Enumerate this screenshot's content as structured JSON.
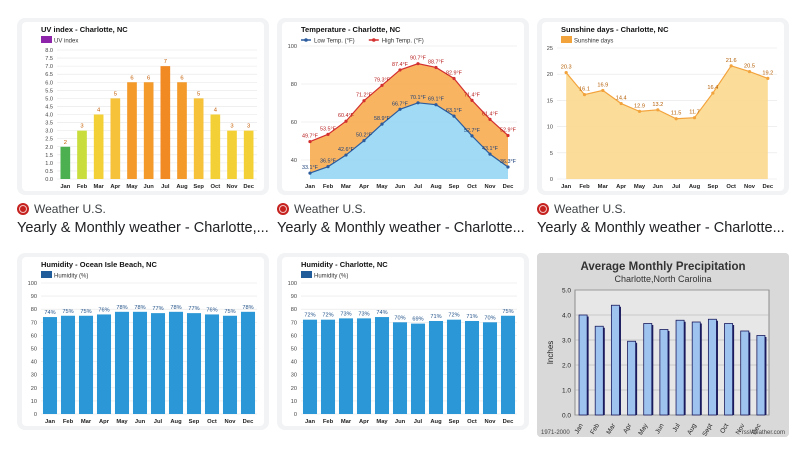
{
  "results": [
    {
      "source": "Weather U.S.",
      "title": "Yearly & Monthly weather - Charlotte,..."
    },
    {
      "source": "Weather U.S.",
      "title": "Yearly & Monthly weather - Charlotte..."
    },
    {
      "source": "Weather U.S.",
      "title": "Yearly & Monthly weather - Charlotte..."
    }
  ],
  "footnote": {
    "left": "1971-2000",
    "right": "rssWeather.com"
  },
  "chart_data": [
    {
      "type": "bar",
      "title": "UV index - Charlotte, NC",
      "categories": [
        "Jan",
        "Feb",
        "Mar",
        "Apr",
        "May",
        "Jun",
        "Jul",
        "Aug",
        "Sep",
        "Oct",
        "Nov",
        "Dec"
      ],
      "series": [
        {
          "name": "UV index",
          "values": [
            2,
            3,
            4,
            5,
            6,
            6,
            7,
            6,
            5,
            4,
            3,
            3
          ]
        }
      ],
      "ylim": [
        0,
        8.0
      ],
      "yticks": [
        "0.0",
        "0.5",
        "1.0",
        "1.5",
        "2.0",
        "2.5",
        "3.0",
        "3.5",
        "4.0",
        "4.5",
        "5.0",
        "5.5",
        "6.0",
        "6.5",
        "7.0",
        "7.5",
        "8.0"
      ],
      "colors": [
        "#4caf50",
        "#c9dd3c",
        "#f4d037",
        "#f5c23a",
        "#f39a2b",
        "#f39a2b",
        "#f28a24",
        "#f39a2b",
        "#f5c23a",
        "#f4d037",
        "#f4d037",
        "#f4d037"
      ],
      "legend_color": "#8e24aa"
    },
    {
      "type": "line",
      "title": "Temperature - Charlotte, NC",
      "categories": [
        "Jan",
        "Feb",
        "Mar",
        "Apr",
        "May",
        "Jun",
        "Jul",
        "Aug",
        "Sep",
        "Oct",
        "Nov",
        "Dec"
      ],
      "series": [
        {
          "name": "Low Temp. (°F)",
          "values": [
            33.1,
            36.5,
            42.6,
            50.2,
            58.9,
            66.7,
            70.1,
            69.1,
            63.1,
            52.7,
            43.1,
            36.3
          ],
          "labels": [
            "33.1°F",
            "36.5°F",
            "42.6°F",
            "50.2°F",
            "58.9°F",
            "66.7°F",
            "70.1°F",
            "69.1°F",
            "63.1°F",
            "52.7°F",
            "43.1°F",
            "36.3°F"
          ],
          "color": "#2c5c9e"
        },
        {
          "name": "High Temp. (°F)",
          "values": [
            49.7,
            53.5,
            60.4,
            71.2,
            79.3,
            87.4,
            90.7,
            88.7,
            82.9,
            71.4,
            61.4,
            52.9
          ],
          "labels": [
            "49.7°F",
            "53.5°F",
            "60.4°F",
            "71.2°F",
            "79.3°F",
            "87.4°F",
            "90.7°F",
            "88.7°F",
            "82.9°F",
            "71.4°F",
            "61.4°F",
            "52.9°F"
          ],
          "color": "#d32f2f"
        }
      ],
      "ylim": [
        30,
        100
      ],
      "yticks": [
        "40",
        "60",
        "80",
        "100"
      ]
    },
    {
      "type": "area",
      "title": "Sunshine days - Charlotte, NC",
      "categories": [
        "Jan",
        "Feb",
        "Mar",
        "Apr",
        "May",
        "Jun",
        "Jul",
        "Aug",
        "Sep",
        "Oct",
        "Nov",
        "Dec"
      ],
      "series": [
        {
          "name": "Sunshine days",
          "values": [
            20.3,
            16.1,
            16.9,
            14.4,
            12.9,
            13.2,
            11.5,
            11.7,
            16.4,
            21.6,
            20.5,
            19.2
          ],
          "labels": [
            "20.3",
            "16.1",
            "16.9",
            "14.4",
            "12.9",
            "13.2",
            "11.5",
            "11.7",
            "16.4",
            "21.6",
            "20.5",
            "19.2"
          ]
        }
      ],
      "ylim": [
        0,
        25
      ],
      "yticks": [
        "0",
        "5",
        "10",
        "15",
        "20",
        "25"
      ],
      "color": "#f3a33c"
    },
    {
      "type": "bar",
      "title": "Humidity - Ocean Isle Beach, NC",
      "categories": [
        "Jan",
        "Feb",
        "Mar",
        "Apr",
        "May",
        "Jun",
        "Jul",
        "Aug",
        "Sep",
        "Oct",
        "Nov",
        "Dec"
      ],
      "series": [
        {
          "name": "Humidity (%)",
          "values": [
            74,
            75,
            75,
            76,
            78,
            78,
            77,
            78,
            77,
            76,
            75,
            78
          ],
          "labels": [
            "74%",
            "75%",
            "75%",
            "76%",
            "78%",
            "78%",
            "77%",
            "78%",
            "77%",
            "76%",
            "75%",
            "78%"
          ]
        }
      ],
      "ylim": [
        0,
        100
      ],
      "yticks": [
        "0",
        "10",
        "20",
        "30",
        "40",
        "50",
        "60",
        "70",
        "80",
        "90",
        "100"
      ],
      "color": "#2b97d6"
    },
    {
      "type": "bar",
      "title": "Humidity - Charlotte, NC",
      "categories": [
        "Jan",
        "Feb",
        "Mar",
        "Apr",
        "May",
        "Jun",
        "Jul",
        "Aug",
        "Sep",
        "Oct",
        "Nov",
        "Dec"
      ],
      "series": [
        {
          "name": "Humidity (%)",
          "values": [
            72,
            72,
            73,
            73,
            74,
            70,
            69,
            71,
            72,
            71,
            70,
            75
          ],
          "labels": [
            "72%",
            "72%",
            "73%",
            "73%",
            "74%",
            "70%",
            "69%",
            "71%",
            "72%",
            "71%",
            "70%",
            "75%"
          ]
        }
      ],
      "ylim": [
        0,
        100
      ],
      "yticks": [
        "0",
        "10",
        "20",
        "30",
        "40",
        "50",
        "60",
        "70",
        "80",
        "90",
        "100"
      ],
      "color": "#2b97d6"
    },
    {
      "type": "bar",
      "title": "Average Monthly Precipitation",
      "subtitle": "Charlotte,North Carolina",
      "ylabel": "Inches",
      "categories": [
        "Jan",
        "Feb",
        "Mar",
        "Apr",
        "May",
        "Jun",
        "Jul",
        "Aug",
        "Sept",
        "Oct",
        "Nov",
        "Dec"
      ],
      "series": [
        {
          "values": [
            4.0,
            3.55,
            4.39,
            2.95,
            3.66,
            3.42,
            3.79,
            3.72,
            3.83,
            3.66,
            3.36,
            3.18
          ]
        }
      ],
      "ylim": [
        0,
        5.0
      ],
      "yticks": [
        "0.0",
        "1.0",
        "2.0",
        "3.0",
        "4.0",
        "5.0"
      ],
      "color": "#9ec3ee"
    }
  ]
}
